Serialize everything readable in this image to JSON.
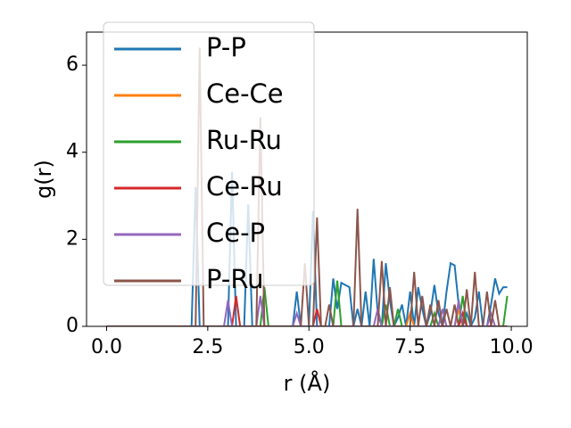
{
  "chart_data": {
    "type": "line",
    "xlabel": "r (Å)",
    "ylabel": "g(r)",
    "x": [
      0,
      0.1,
      0.2,
      0.3,
      0.4,
      0.5,
      0.6,
      0.7,
      0.8,
      0.9,
      1.0,
      1.1,
      1.2,
      1.3,
      1.4,
      1.5,
      1.6,
      1.7,
      1.8,
      1.9,
      2.0,
      2.1,
      2.2,
      2.3,
      2.4,
      2.5,
      2.6,
      2.7,
      2.8,
      2.9,
      3.0,
      3.1,
      3.2,
      3.3,
      3.4,
      3.5,
      3.6,
      3.7,
      3.8,
      3.9,
      4.0,
      4.1,
      4.2,
      4.3,
      4.4,
      4.5,
      4.6,
      4.7,
      4.8,
      4.9,
      5.0,
      5.1,
      5.2,
      5.3,
      5.4,
      5.5,
      5.6,
      5.7,
      5.8,
      5.9,
      6.0,
      6.1,
      6.2,
      6.3,
      6.4,
      6.5,
      6.6,
      6.7,
      6.8,
      6.9,
      7.0,
      7.1,
      7.2,
      7.3,
      7.4,
      7.5,
      7.6,
      7.7,
      7.8,
      7.9,
      8.0,
      8.1,
      8.2,
      8.3,
      8.4,
      8.5,
      8.6,
      8.7,
      8.8,
      8.9,
      9.0,
      9.1,
      9.2,
      9.3,
      9.4,
      9.5,
      9.6,
      9.7,
      9.8,
      9.9
    ],
    "series": [
      {
        "name": "P-P",
        "color": "#1f77b4",
        "values": [
          0,
          0,
          0,
          0,
          0,
          0,
          0,
          0,
          0,
          0,
          0,
          0,
          0,
          0,
          0,
          0,
          0,
          0,
          0,
          0,
          0,
          0,
          3.2,
          0,
          0,
          0,
          0,
          0,
          0,
          0,
          0,
          3.55,
          0,
          0,
          0,
          2.8,
          0,
          0,
          0,
          0,
          0,
          0,
          0,
          0,
          0,
          0,
          0,
          0.8,
          0,
          0,
          0,
          2.65,
          0,
          0,
          0,
          0,
          1.1,
          0.4,
          1.0,
          0.95,
          0.9,
          0,
          0.4,
          0,
          0.8,
          0,
          1.55,
          0.3,
          0,
          1.45,
          0.6,
          0,
          0.2,
          0.5,
          0,
          0.8,
          0,
          0.9,
          0.4,
          0,
          0.3,
          0.95,
          0.3,
          0,
          0.8,
          1.45,
          1.4,
          0.5,
          0,
          0.3,
          0,
          0.2,
          0.8,
          0,
          0,
          0.5,
          1.1,
          0.75,
          0.9,
          0.9
        ]
      },
      {
        "name": "Ce-Ce",
        "color": "#ff7f0e",
        "values": [
          0,
          0,
          0,
          0,
          0,
          0,
          0,
          0,
          0,
          0,
          0,
          0,
          0,
          0,
          0,
          0,
          0,
          0,
          0,
          0,
          0,
          0,
          0,
          0,
          0,
          0,
          0,
          0,
          0,
          0,
          0,
          0,
          0,
          0,
          0,
          0,
          0,
          0,
          0,
          0,
          0,
          0,
          0,
          0,
          0,
          0,
          0,
          0,
          0,
          0,
          0,
          0,
          0,
          0,
          0,
          0,
          0,
          0,
          0,
          0,
          0,
          0,
          0,
          0,
          0,
          0,
          0,
          0,
          0,
          0,
          0,
          0,
          0,
          0,
          0,
          0.3,
          0,
          0,
          0,
          0,
          0,
          0,
          0,
          0,
          0,
          0,
          0,
          0.4,
          0,
          0,
          0,
          0,
          0,
          0,
          0,
          0,
          0,
          0,
          0,
          0
        ]
      },
      {
        "name": "Ru-Ru",
        "color": "#2ca02c",
        "values": [
          0,
          0,
          0,
          0,
          0,
          0,
          0,
          0,
          0,
          0,
          0,
          0,
          0,
          0,
          0,
          0,
          0,
          0,
          0,
          0,
          0,
          0,
          0,
          0,
          0,
          0,
          0,
          0,
          0,
          0,
          0,
          0,
          0,
          0,
          0,
          0,
          0,
          0,
          0,
          0.9,
          0,
          0,
          0,
          0,
          0,
          0,
          0,
          0,
          0,
          0,
          0,
          0,
          0,
          0,
          0,
          0,
          0,
          1.05,
          0,
          0,
          0,
          0,
          0,
          0,
          0,
          0,
          0,
          0,
          0,
          0.5,
          0,
          0,
          0.4,
          0,
          0,
          0,
          0,
          0,
          0,
          0,
          0,
          0.3,
          0,
          0,
          0,
          0,
          0,
          0,
          0.7,
          0,
          0,
          0,
          0,
          0,
          0,
          0,
          0,
          0,
          0,
          0.7
        ]
      },
      {
        "name": "Ce-Ru",
        "color": "#d62728",
        "values": [
          0,
          0,
          0,
          0,
          0,
          0,
          0,
          0,
          0,
          0,
          0,
          0,
          0,
          0,
          0,
          0,
          0,
          0,
          0,
          0,
          0,
          0,
          0,
          0,
          0,
          0,
          0,
          0,
          0,
          0,
          0,
          0,
          0.7,
          0,
          0,
          0,
          0,
          0,
          0,
          0,
          0,
          0,
          0,
          0,
          0,
          0,
          0,
          0,
          0,
          0,
          0,
          0,
          0.4,
          0,
          0,
          0,
          0,
          0,
          0,
          0,
          0,
          0,
          0,
          0,
          0,
          0,
          0,
          0,
          0,
          0,
          0,
          0,
          0,
          0,
          0,
          0,
          0,
          0,
          0,
          0,
          0,
          0,
          0,
          0,
          0,
          0,
          0,
          0,
          0.3,
          0,
          0,
          0,
          0,
          0,
          0,
          0,
          0,
          0,
          0,
          0
        ]
      },
      {
        "name": "Ce-P",
        "color": "#9467bd",
        "values": [
          0,
          0,
          0,
          0,
          0,
          0,
          0,
          0,
          0,
          0,
          0,
          0,
          0,
          0,
          0,
          0,
          0,
          0,
          0,
          0,
          0,
          0,
          0,
          0,
          0,
          0,
          0,
          0,
          0,
          0,
          0.6,
          0,
          0,
          0,
          0,
          0,
          0,
          0,
          0.7,
          0,
          0,
          0,
          0,
          0,
          0,
          0,
          0,
          0.3,
          0,
          0,
          0,
          0,
          0,
          0,
          0,
          0,
          0,
          0,
          0,
          0,
          0,
          0,
          0,
          0,
          0,
          0,
          0,
          0.4,
          0,
          0,
          0,
          0,
          0,
          0,
          0,
          0,
          0,
          0,
          0,
          0,
          0,
          0,
          0,
          0.4,
          0,
          0,
          0,
          0.6,
          0,
          0,
          0,
          0,
          0,
          0,
          0,
          0.3,
          0,
          0,
          0,
          0
        ]
      },
      {
        "name": "P-Ru",
        "color": "#8c564b",
        "values": [
          0,
          0,
          0,
          0,
          0,
          0,
          0,
          0,
          0,
          0,
          0,
          0,
          0,
          0,
          0,
          0,
          0,
          0,
          0,
          0,
          0,
          0,
          0,
          6.4,
          0,
          0,
          0,
          0,
          0,
          0,
          0,
          0,
          0,
          0,
          0,
          0,
          0,
          0,
          4.8,
          0,
          0,
          0,
          0,
          0,
          0,
          0,
          0,
          0,
          0,
          1.45,
          0,
          0,
          2.5,
          0,
          0,
          0.5,
          0,
          0,
          0,
          0,
          0,
          0,
          2.7,
          0,
          0,
          0,
          0,
          0,
          1.5,
          0,
          0.9,
          0,
          0,
          0,
          0,
          0,
          1.25,
          0,
          0.7,
          0,
          0.5,
          0,
          0.6,
          0,
          0.4,
          0,
          0.5,
          0,
          0,
          0.85,
          0,
          1.25,
          0,
          0,
          0.8,
          0,
          0.6,
          0,
          0,
          0
        ]
      }
    ],
    "xlim": [
      -0.495,
      10.395
    ],
    "xticks": [
      {
        "value": 0,
        "label": "0.0"
      },
      {
        "value": 2.5,
        "label": "2.5"
      },
      {
        "value": 5,
        "label": "5.0"
      },
      {
        "value": 7.5,
        "label": "7.5"
      },
      {
        "value": 10,
        "label": "10.0"
      }
    ],
    "ylim": [
      0,
      6.76
    ],
    "yticks": [
      0,
      2,
      4,
      6
    ],
    "legend": "upper left"
  }
}
